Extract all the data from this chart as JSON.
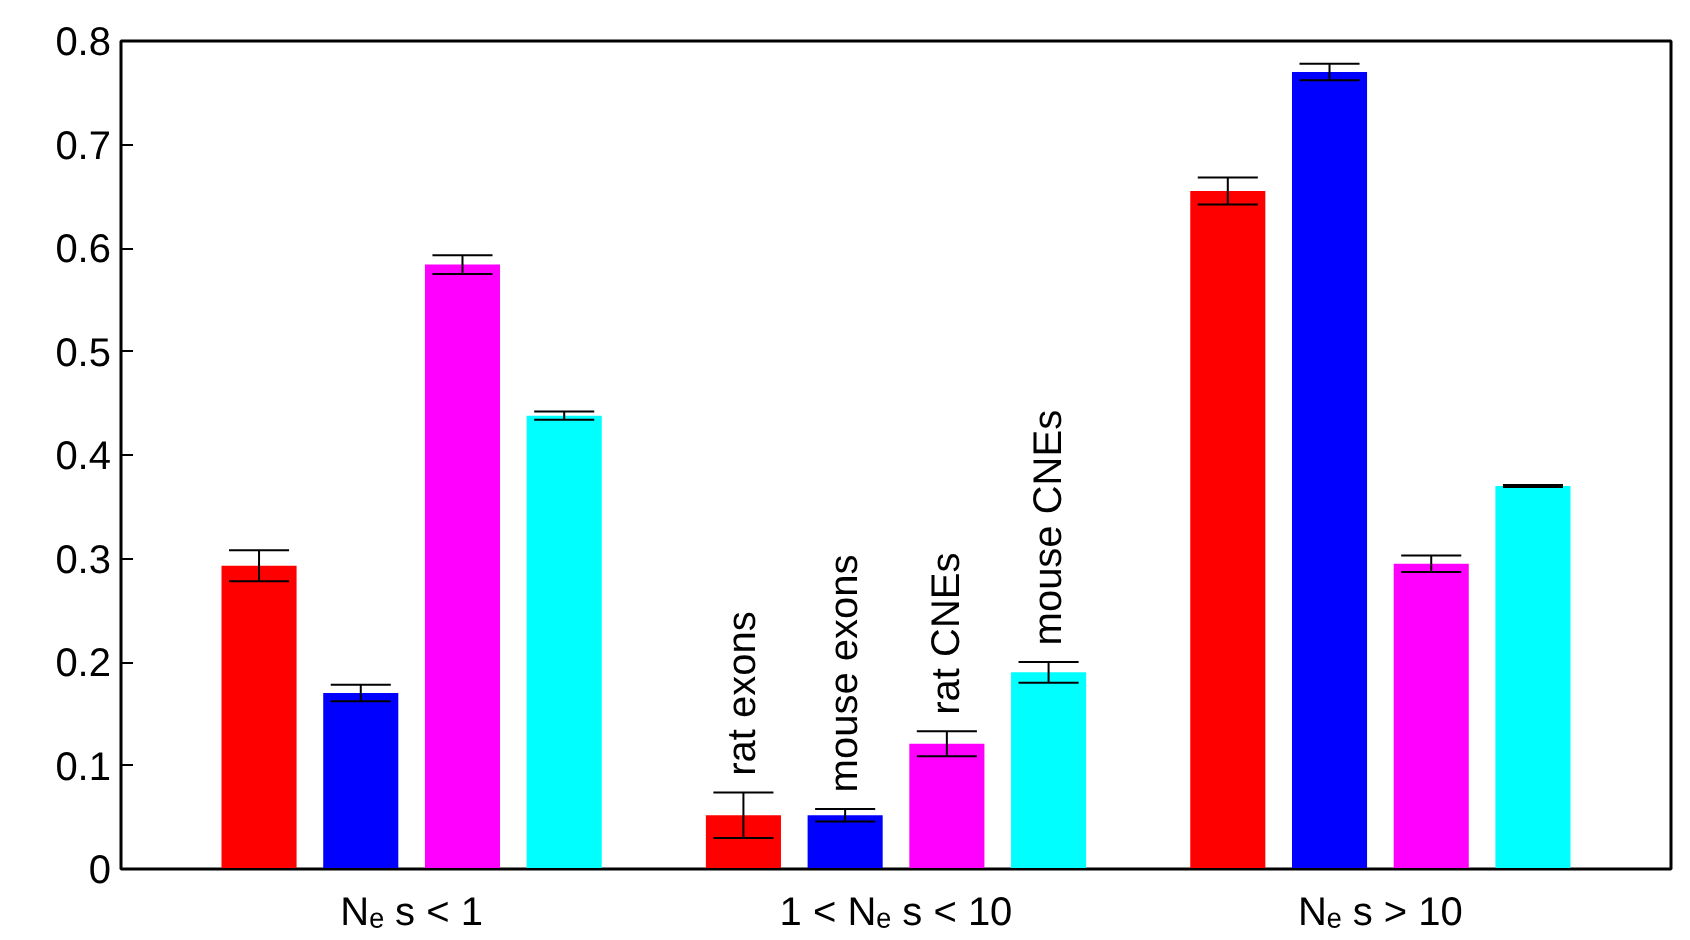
{
  "chart_data": {
    "type": "bar",
    "categories": [
      "Nₑ s < 1",
      "1 < Nₑ s < 10",
      "Nₑ s > 10"
    ],
    "series": [
      {
        "name": "rat exons",
        "color": "#ff0000",
        "values": [
          0.293,
          0.052,
          0.655
        ],
        "errors": [
          0.015,
          0.022,
          0.013
        ]
      },
      {
        "name": "mouse exons",
        "color": "#0000ff",
        "values": [
          0.17,
          0.052,
          0.77
        ],
        "errors": [
          0.008,
          0.006,
          0.008
        ]
      },
      {
        "name": "rat CNEs",
        "color": "#ff00ff",
        "values": [
          0.584,
          0.121,
          0.295
        ],
        "errors": [
          0.009,
          0.012,
          0.008
        ]
      },
      {
        "name": "mouse CNEs",
        "color": "#00ffff",
        "values": [
          0.438,
          0.19,
          0.37
        ],
        "errors": [
          0.004,
          0.01,
          0.001
        ]
      }
    ],
    "ylim": [
      0,
      0.8
    ],
    "yticks": [
      0,
      0.1,
      0.2,
      0.3,
      0.4,
      0.5,
      0.6,
      0.7,
      0.8
    ],
    "grid": false
  }
}
